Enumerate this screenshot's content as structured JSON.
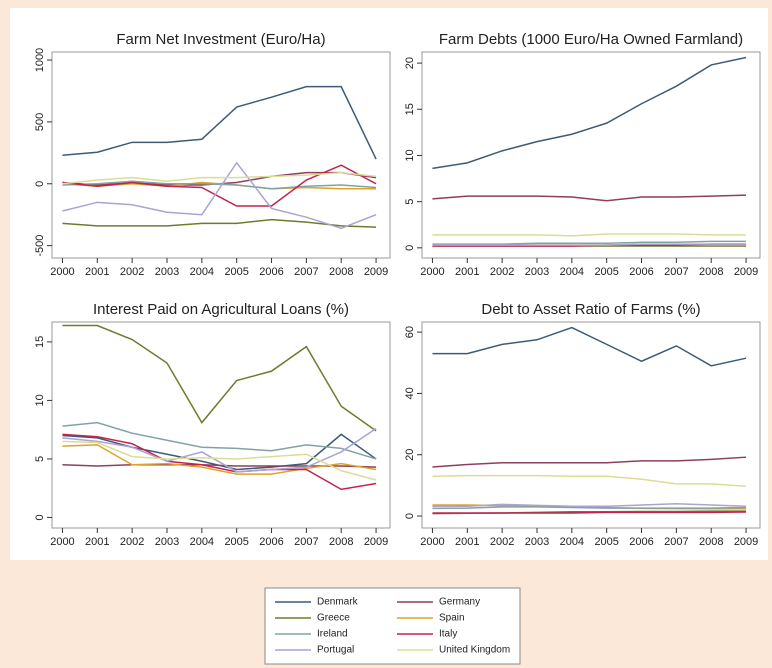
{
  "chart_data": [
    {
      "type": "line",
      "title": "Farm Net Investment (Euro/Ha)",
      "x": [
        2000,
        2001,
        2002,
        2003,
        2004,
        2005,
        2006,
        2007,
        2008,
        2009
      ],
      "xlim": [
        1999.7,
        2009.4
      ],
      "xticks": [
        2000,
        2001,
        2002,
        2003,
        2004,
        2005,
        2006,
        2007,
        2008,
        2009
      ],
      "ylim": [
        -600,
        1065
      ],
      "yticks": [
        -500,
        0,
        500,
        1000
      ],
      "series": [
        {
          "name": "Denmark",
          "color": "#3d5b78",
          "values": [
            230,
            255,
            335,
            335,
            360,
            620,
            700,
            785,
            785,
            200
          ]
        },
        {
          "name": "Germany",
          "color": "#8c3f5e",
          "values": [
            10,
            -10,
            10,
            -10,
            -10,
            10,
            60,
            90,
            90,
            50
          ]
        },
        {
          "name": "Greece",
          "color": "#6e7b2e",
          "values": [
            -320,
            -340,
            -340,
            -340,
            -320,
            -320,
            -290,
            -310,
            -340,
            -350
          ]
        },
        {
          "name": "Spain",
          "color": "#e0a22a",
          "values": [
            0,
            -20,
            0,
            -20,
            10,
            -10,
            -40,
            -30,
            -40,
            -40
          ]
        },
        {
          "name": "Ireland",
          "color": "#82a3a3",
          "values": [
            -10,
            0,
            20,
            0,
            0,
            -10,
            -40,
            -20,
            -10,
            -30
          ]
        },
        {
          "name": "Italy",
          "color": "#c4224e",
          "values": [
            10,
            -20,
            10,
            -20,
            -30,
            -180,
            -180,
            30,
            150,
            0
          ]
        },
        {
          "name": "Portugal",
          "color": "#aaa3d4",
          "values": [
            -220,
            -150,
            -170,
            -230,
            -250,
            170,
            -200,
            -270,
            -360,
            -250
          ]
        },
        {
          "name": "United Kingdom",
          "color": "#dcdc96",
          "values": [
            0,
            30,
            50,
            20,
            50,
            50,
            60,
            70,
            90,
            60
          ]
        }
      ]
    },
    {
      "type": "line",
      "title": "Farm Debts (1000 Euro/Ha Owned Farmland)",
      "x": [
        2000,
        2001,
        2002,
        2003,
        2004,
        2005,
        2006,
        2007,
        2008,
        2009
      ],
      "xlim": [
        1999.7,
        2009.4
      ],
      "xticks": [
        2000,
        2001,
        2002,
        2003,
        2004,
        2005,
        2006,
        2007,
        2008,
        2009
      ],
      "ylim": [
        -1.1,
        21.2
      ],
      "yticks": [
        0,
        5,
        10,
        15,
        20
      ],
      "series": [
        {
          "name": "Denmark",
          "color": "#3d5b78",
          "values": [
            8.6,
            9.2,
            10.5,
            11.5,
            12.3,
            13.5,
            15.6,
            17.5,
            19.8,
            20.6
          ]
        },
        {
          "name": "Germany",
          "color": "#8c3f5e",
          "values": [
            5.3,
            5.6,
            5.6,
            5.6,
            5.5,
            5.1,
            5.5,
            5.5,
            5.6,
            5.7
          ]
        },
        {
          "name": "Greece",
          "color": "#6e7b2e",
          "values": [
            0.2,
            0.2,
            0.2,
            0.2,
            0.2,
            0.2,
            0.2,
            0.2,
            0.2,
            0.2
          ]
        },
        {
          "name": "Spain",
          "color": "#e0a22a",
          "values": [
            0.3,
            0.3,
            0.3,
            0.3,
            0.3,
            0.3,
            0.3,
            0.3,
            0.3,
            0.3
          ]
        },
        {
          "name": "Ireland",
          "color": "#82a3a3",
          "values": [
            0.4,
            0.4,
            0.4,
            0.5,
            0.5,
            0.5,
            0.6,
            0.6,
            0.7,
            0.7
          ]
        },
        {
          "name": "Italy",
          "color": "#c4224e",
          "values": [
            0.2,
            0.2,
            0.2,
            0.2,
            0.2,
            0.3,
            0.3,
            0.3,
            0.4,
            0.4
          ]
        },
        {
          "name": "Portugal",
          "color": "#aaa3d4",
          "values": [
            0.3,
            0.3,
            0.3,
            0.3,
            0.3,
            0.3,
            0.4,
            0.4,
            0.4,
            0.4
          ]
        },
        {
          "name": "United Kingdom",
          "color": "#dcdc96",
          "values": [
            1.4,
            1.4,
            1.4,
            1.4,
            1.3,
            1.5,
            1.5,
            1.5,
            1.4,
            1.4
          ]
        }
      ]
    },
    {
      "type": "line",
      "title": "Interest Paid on Agricultural Loans (%)",
      "x": [
        2000,
        2001,
        2002,
        2003,
        2004,
        2005,
        2006,
        2007,
        2008,
        2009
      ],
      "xlim": [
        1999.7,
        2009.4
      ],
      "xticks": [
        2000,
        2001,
        2002,
        2003,
        2004,
        2005,
        2006,
        2007,
        2008,
        2009
      ],
      "ylim": [
        -0.9,
        16.7
      ],
      "yticks": [
        0,
        5,
        10,
        15
      ],
      "series": [
        {
          "name": "Denmark",
          "color": "#3d5b78",
          "values": [
            7.0,
            6.8,
            6.0,
            5.4,
            4.8,
            4.1,
            4.3,
            4.6,
            7.1,
            5.0
          ]
        },
        {
          "name": "Germany",
          "color": "#8c3f5e",
          "values": [
            4.5,
            4.4,
            4.5,
            4.5,
            4.5,
            4.4,
            4.4,
            4.4,
            4.4,
            4.3
          ]
        },
        {
          "name": "Greece",
          "color": "#6e7b2e",
          "values": [
            16.4,
            16.4,
            15.2,
            13.2,
            8.1,
            11.7,
            12.5,
            14.6,
            9.5,
            7.4
          ]
        },
        {
          "name": "Spain",
          "color": "#e0a22a",
          "values": [
            6.1,
            6.2,
            4.5,
            4.6,
            4.3,
            3.7,
            3.7,
            4.2,
            4.6,
            4.1
          ]
        },
        {
          "name": "Ireland",
          "color": "#82a3a3",
          "values": [
            7.8,
            8.1,
            7.2,
            6.6,
            6.0,
            5.9,
            5.7,
            6.2,
            5.9,
            5.0
          ]
        },
        {
          "name": "Italy",
          "color": "#c4224e",
          "values": [
            7.1,
            6.9,
            6.3,
            4.8,
            4.5,
            3.9,
            4.1,
            4.1,
            2.4,
            2.9
          ]
        },
        {
          "name": "Portugal",
          "color": "#aaa3d4",
          "values": [
            6.8,
            6.5,
            6.0,
            4.8,
            5.6,
            3.9,
            4.1,
            4.3,
            5.6,
            7.6
          ]
        },
        {
          "name": "United Kingdom",
          "color": "#dcdc96",
          "values": [
            6.5,
            6.4,
            5.2,
            5.0,
            5.1,
            5.0,
            5.2,
            5.4,
            4.0,
            3.2
          ]
        }
      ]
    },
    {
      "type": "line",
      "title": "Debt to Asset Ratio of Farms (%)",
      "x": [
        2000,
        2001,
        2002,
        2003,
        2004,
        2005,
        2006,
        2007,
        2008,
        2009
      ],
      "xlim": [
        1999.7,
        2009.4
      ],
      "xticks": [
        2000,
        2001,
        2002,
        2003,
        2004,
        2005,
        2006,
        2007,
        2008,
        2009
      ],
      "ylim": [
        -3.9,
        63.3
      ],
      "yticks": [
        0,
        20,
        40,
        60
      ],
      "series": [
        {
          "name": "Denmark",
          "color": "#3d5b78",
          "values": [
            53,
            53,
            56,
            57.5,
            61.5,
            56,
            50.5,
            55.5,
            49,
            51.5
          ]
        },
        {
          "name": "Germany",
          "color": "#8c3f5e",
          "values": [
            16,
            16.8,
            17.4,
            17.4,
            17.4,
            17.4,
            18,
            18,
            18.5,
            19.2
          ]
        },
        {
          "name": "Greece",
          "color": "#6e7b2e",
          "values": [
            0.8,
            0.9,
            1.0,
            1.2,
            1.4,
            1.4,
            1.5,
            1.5,
            1.6,
            1.6
          ]
        },
        {
          "name": "Spain",
          "color": "#e0a22a",
          "values": [
            3.6,
            3.6,
            3.4,
            3.3,
            3.2,
            2.8,
            2.5,
            2.4,
            2.4,
            2.4
          ]
        },
        {
          "name": "Ireland",
          "color": "#82a3a3",
          "values": [
            2.5,
            2.6,
            3,
            3,
            2.8,
            2.6,
            2.6,
            2.6,
            2.6,
            2.8
          ]
        },
        {
          "name": "Italy",
          "color": "#c4224e",
          "values": [
            1.0,
            1.0,
            1.0,
            1.0,
            1.0,
            1.2,
            1.2,
            1.2,
            1.2,
            1.3
          ]
        },
        {
          "name": "Portugal",
          "color": "#aaa3d4",
          "values": [
            3.2,
            3.2,
            3.8,
            3.5,
            3.2,
            3.2,
            3.6,
            4.0,
            3.6,
            3.2
          ]
        },
        {
          "name": "United Kingdom",
          "color": "#dcdc96",
          "values": [
            13,
            13.2,
            13.2,
            13.2,
            13,
            13,
            12,
            10.5,
            10.5,
            9.7
          ]
        }
      ]
    }
  ]
}
